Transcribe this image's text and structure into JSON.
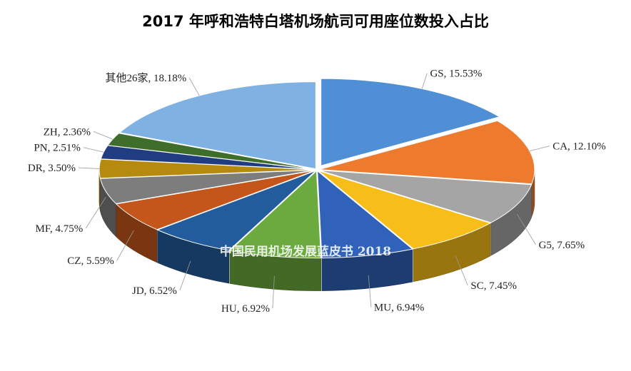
{
  "chart_data": {
    "type": "pie",
    "title": "2017 年呼和浩特白塔机场航司可用座位数投入占比",
    "slices": [
      {
        "label": "GS",
        "value": 15.53,
        "display": "GS, 15.53%",
        "color": "#4f8fd6"
      },
      {
        "label": "CA",
        "value": 12.1,
        "display": "CA, 12.10%",
        "color": "#ee7a2e"
      },
      {
        "label": "G5",
        "value": 7.65,
        "display": "G5, 7.65%",
        "color": "#a5a5a5"
      },
      {
        "label": "SC",
        "value": 7.45,
        "display": "SC, 7.45%",
        "color": "#f7bd18"
      },
      {
        "label": "MU",
        "value": 6.94,
        "display": "MU, 6.94%",
        "color": "#2f62b8"
      },
      {
        "label": "HU",
        "value": 6.92,
        "display": "HU, 6.92%",
        "color": "#6aaa3e"
      },
      {
        "label": "JD",
        "value": 6.52,
        "display": "JD, 6.52%",
        "color": "#225c9c"
      },
      {
        "label": "CZ",
        "value": 5.59,
        "display": "CZ, 5.59%",
        "color": "#c4561c"
      },
      {
        "label": "MF",
        "value": 4.75,
        "display": "MF, 4.75%",
        "color": "#7d7d7d"
      },
      {
        "label": "DR",
        "value": 3.5,
        "display": "DR, 3.50%",
        "color": "#b58a0e"
      },
      {
        "label": "PN",
        "value": 2.51,
        "display": "PN, 2.51%",
        "color": "#213d82"
      },
      {
        "label": "ZH",
        "value": 2.36,
        "display": "ZH, 2.36%",
        "color": "#3f6e2a"
      },
      {
        "label": "其他26家",
        "value": 18.18,
        "display": "其他26家, 18.18%",
        "color": "#7fb1e2"
      }
    ]
  },
  "watermark": "中国民用机场发展蓝皮书 2018"
}
